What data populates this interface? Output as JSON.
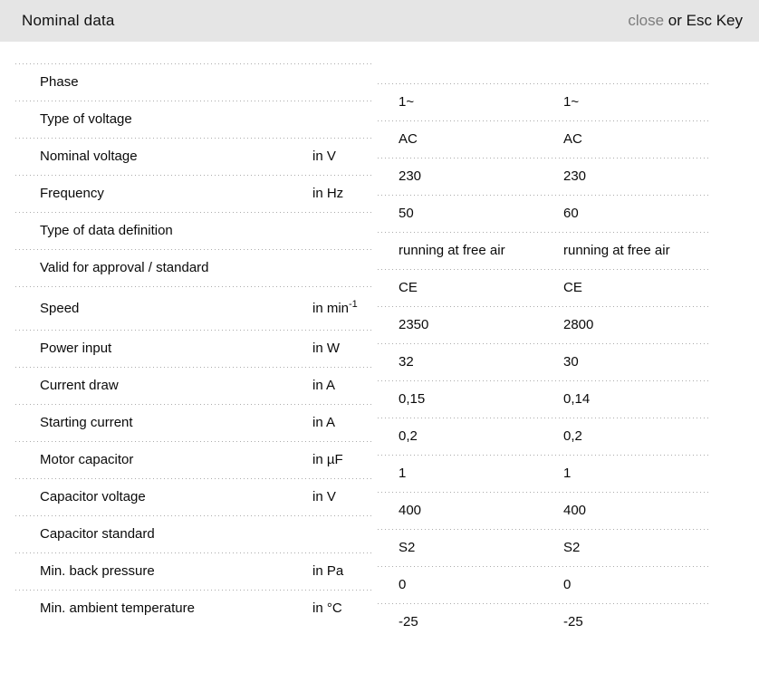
{
  "header": {
    "title": "Nominal data",
    "close_label": "close",
    "close_suffix": " or Esc Key"
  },
  "table": {
    "rows": [
      {
        "label": "Phase",
        "unit": "",
        "unit_sup": "",
        "v1": "1~",
        "v2": "1~"
      },
      {
        "label": "Type of voltage",
        "unit": "",
        "unit_sup": "",
        "v1": "AC",
        "v2": "AC"
      },
      {
        "label": "Nominal voltage",
        "unit": "in V",
        "unit_sup": "",
        "v1": "230",
        "v2": "230"
      },
      {
        "label": "Frequency",
        "unit": "in Hz",
        "unit_sup": "",
        "v1": "50",
        "v2": "60"
      },
      {
        "label": "Type of data definition",
        "unit": "",
        "unit_sup": "",
        "v1": "running at free air",
        "v2": "running at free air"
      },
      {
        "label": "Valid for approval / standard",
        "unit": "",
        "unit_sup": "",
        "v1": "CE",
        "v2": "CE"
      },
      {
        "label": "Speed",
        "unit": "in min",
        "unit_sup": "-1",
        "v1": "2350",
        "v2": "2800"
      },
      {
        "label": "Power input",
        "unit": "in W",
        "unit_sup": "",
        "v1": "32",
        "v2": "30"
      },
      {
        "label": "Current draw",
        "unit": "in A",
        "unit_sup": "",
        "v1": "0,15",
        "v2": "0,14"
      },
      {
        "label": "Starting current",
        "unit": "in A",
        "unit_sup": "",
        "v1": "0,2",
        "v2": "0,2"
      },
      {
        "label": "Motor capacitor",
        "unit": "in µF",
        "unit_sup": "",
        "v1": "1",
        "v2": "1"
      },
      {
        "label": "Capacitor voltage",
        "unit": "in V",
        "unit_sup": "",
        "v1": "400",
        "v2": "400"
      },
      {
        "label": "Capacitor standard",
        "unit": "",
        "unit_sup": "",
        "v1": "S2",
        "v2": "S2"
      },
      {
        "label": "Min. back pressure",
        "unit": "in Pa",
        "unit_sup": "",
        "v1": "0",
        "v2": "0"
      },
      {
        "label": "Min. ambient temperature",
        "unit": "in °C",
        "unit_sup": "",
        "v1": "-25",
        "v2": "-25"
      }
    ]
  },
  "colors": {
    "header_bg": "#e5e5e5",
    "close_link": "#7d7d7d",
    "divider": "#ababab",
    "text": "#0a0a0a"
  }
}
